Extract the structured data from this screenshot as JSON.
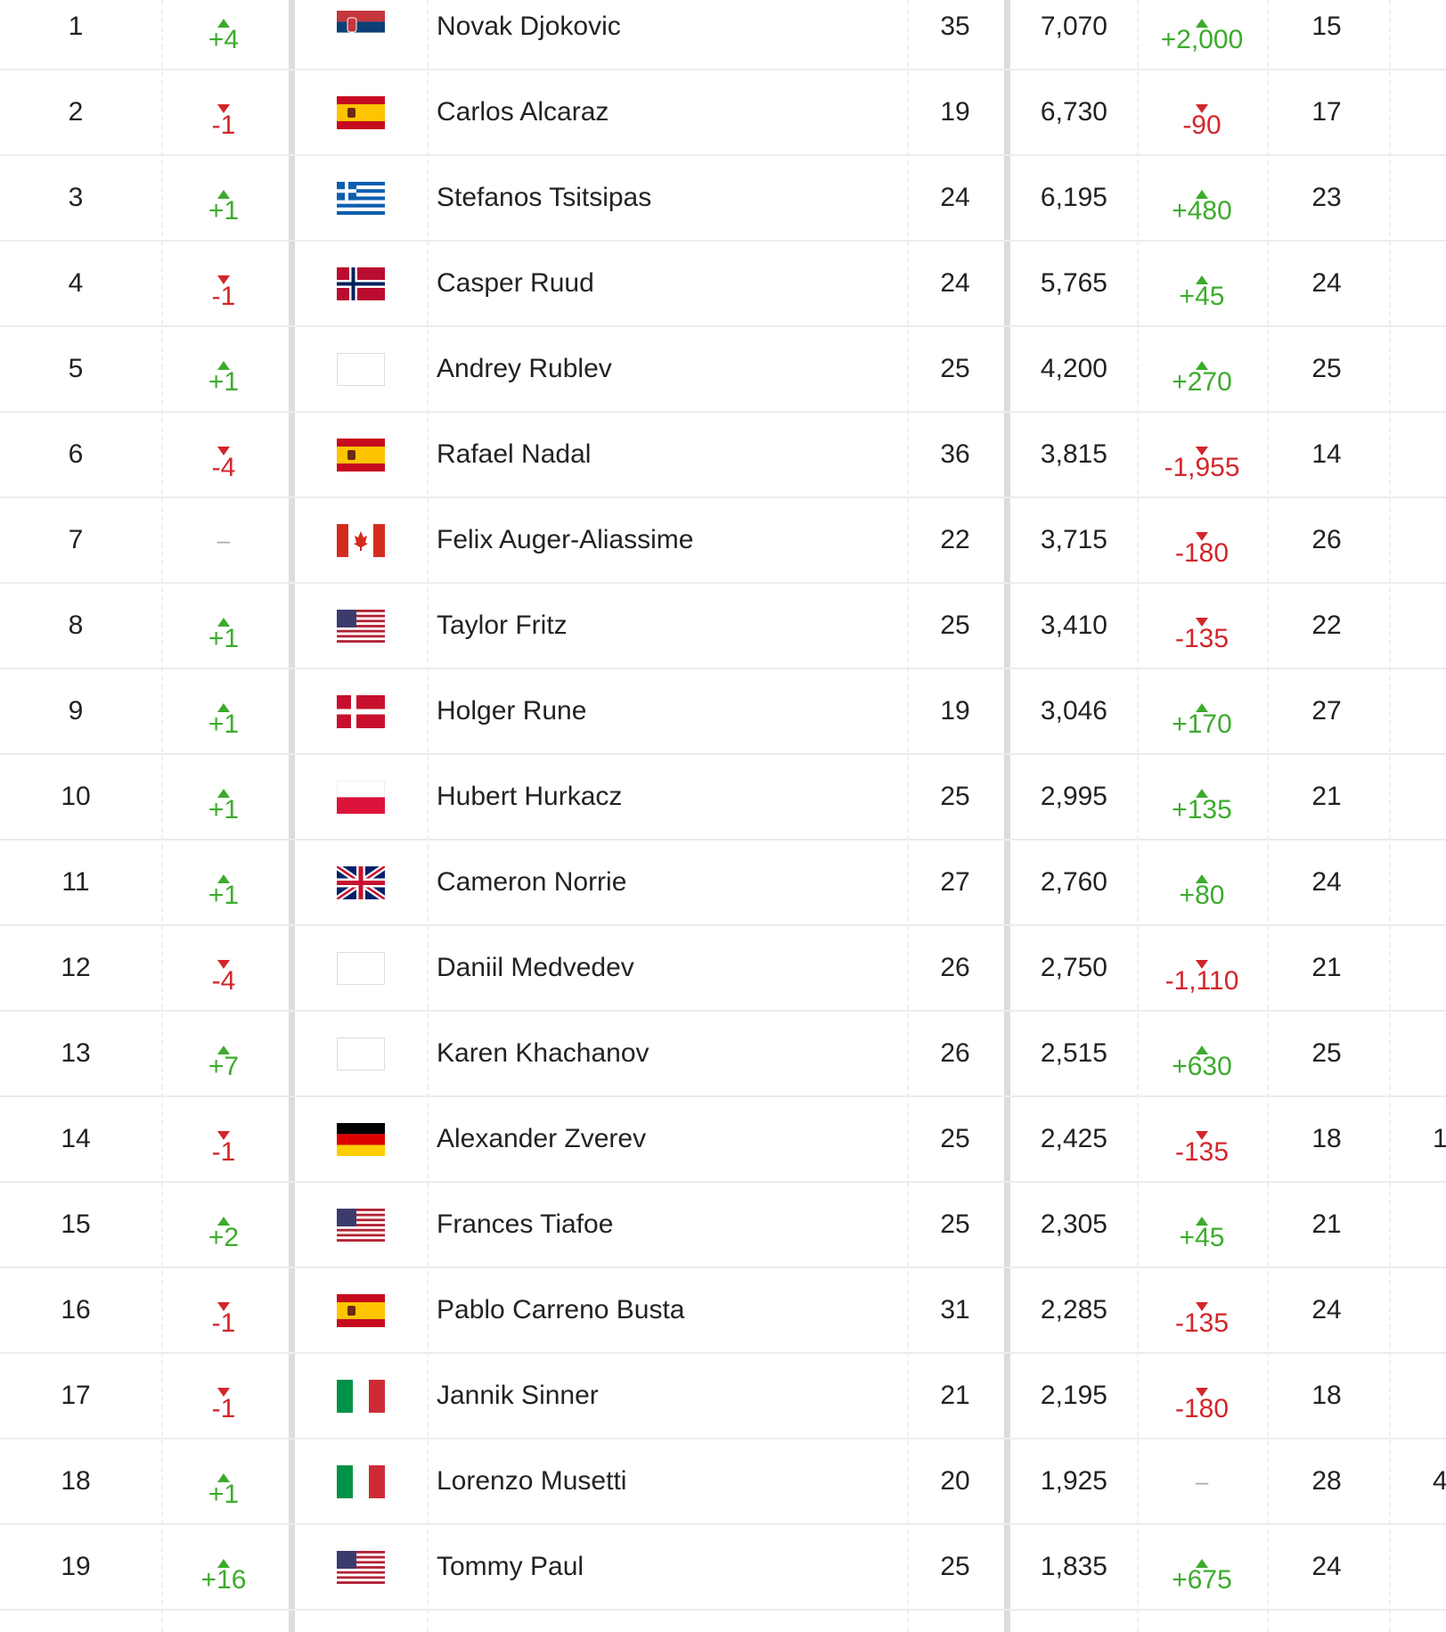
{
  "rows": [
    {
      "rank": "1",
      "move": "+4",
      "name": "Novak Djokovic",
      "age": "35",
      "points": "7,070",
      "change": "+2,000",
      "col7": "15"
    },
    {
      "rank": "2",
      "move": "-1",
      "name": "Carlos Alcaraz",
      "age": "19",
      "points": "6,730",
      "change": "-90",
      "col7": "17"
    },
    {
      "rank": "3",
      "move": "+1",
      "name": "Stefanos Tsitsipas",
      "age": "24",
      "points": "6,195",
      "change": "+480",
      "col7": "23"
    },
    {
      "rank": "4",
      "move": "-1",
      "name": "Casper Ruud",
      "age": "24",
      "points": "5,765",
      "change": "+45",
      "col7": "24"
    },
    {
      "rank": "5",
      "move": "+1",
      "name": "Andrey Rublev",
      "age": "25",
      "points": "4,200",
      "change": "+270",
      "col7": "25"
    },
    {
      "rank": "6",
      "move": "-4",
      "name": "Rafael Nadal",
      "age": "36",
      "points": "3,815",
      "change": "-1,955",
      "col7": "14"
    },
    {
      "rank": "7",
      "move": "–",
      "name": "Felix Auger-Aliassime",
      "age": "22",
      "points": "3,715",
      "change": "-180",
      "col7": "26"
    },
    {
      "rank": "8",
      "move": "+1",
      "name": "Taylor Fritz",
      "age": "25",
      "points": "3,410",
      "change": "-135",
      "col7": "22"
    },
    {
      "rank": "9",
      "move": "+1",
      "name": "Holger Rune",
      "age": "19",
      "points": "3,046",
      "change": "+170",
      "col7": "27"
    },
    {
      "rank": "10",
      "move": "+1",
      "name": "Hubert Hurkacz",
      "age": "25",
      "points": "2,995",
      "change": "+135",
      "col7": "21"
    },
    {
      "rank": "11",
      "move": "+1",
      "name": "Cameron Norrie",
      "age": "27",
      "points": "2,760",
      "change": "+80",
      "col7": "24"
    },
    {
      "rank": "12",
      "move": "-4",
      "name": "Daniil Medvedev",
      "age": "26",
      "points": "2,750",
      "change": "-1,110",
      "col7": "21"
    },
    {
      "rank": "13",
      "move": "+7",
      "name": "Karen Khachanov",
      "age": "26",
      "points": "2,515",
      "change": "+630",
      "col7": "25"
    },
    {
      "rank": "14",
      "move": "-1",
      "name": "Alexander Zverev",
      "age": "25",
      "points": "2,425",
      "change": "-135",
      "col7": "18",
      "extra": "1"
    },
    {
      "rank": "15",
      "move": "+2",
      "name": "Frances Tiafoe",
      "age": "25",
      "points": "2,305",
      "change": "+45",
      "col7": "21"
    },
    {
      "rank": "16",
      "move": "-1",
      "name": "Pablo Carreno Busta",
      "age": "31",
      "points": "2,285",
      "change": "-135",
      "col7": "24"
    },
    {
      "rank": "17",
      "move": "-1",
      "name": "Jannik Sinner",
      "age": "21",
      "points": "2,195",
      "change": "-180",
      "col7": "18"
    },
    {
      "rank": "18",
      "move": "+1",
      "name": "Lorenzo Musetti",
      "age": "20",
      "points": "1,925",
      "change": "–",
      "col7": "28",
      "extra": "4"
    },
    {
      "rank": "19",
      "move": "+16",
      "name": "Tommy Paul",
      "age": "25",
      "points": "1,835",
      "change": "+675",
      "col7": "24"
    }
  ]
}
